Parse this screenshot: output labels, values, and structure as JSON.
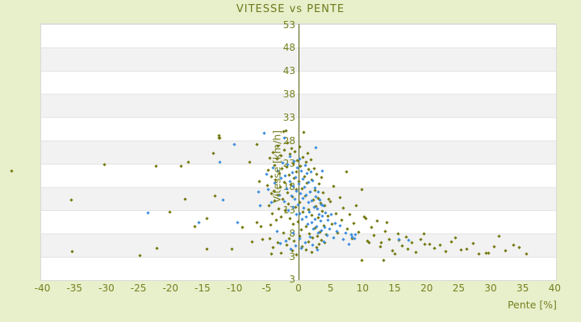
{
  "title": "VITESSE vs PENTE",
  "colors": {
    "background": "#e8efcb",
    "band_gray": "#f2f2f2",
    "band_white": "#ffffff",
    "axis_line": "#4f5a0e",
    "label_olive": "#75801f",
    "series_olive": "#757a12",
    "series_blue": "#3f8fdd"
  },
  "chart_data": {
    "type": "scatter",
    "title": "VITESSE vs PENTE",
    "xlabel": "Pente [%]",
    "ylabel": "Vitesse [km/h]",
    "x_ticks": [
      -40,
      -35,
      -30,
      -25,
      -20,
      -15,
      -10,
      -5,
      0,
      5,
      10,
      15,
      20,
      25,
      30,
      35,
      40
    ],
    "y_ticks": [
      53,
      48,
      43,
      38,
      33,
      28,
      23,
      18,
      13,
      8,
      3
    ],
    "y_axis_end_label": "3",
    "xlim": [
      -40.2,
      40.2
    ],
    "ylim": [
      -2.1,
      53.1
    ],
    "grid": "horizontal-alternating-bands",
    "legend": "none",
    "series": [
      {
        "name": "points-olive",
        "color": "#757a12",
        "points": [
          [
            -44.8,
            21.3
          ],
          [
            -35.4,
            15.1
          ],
          [
            -35.3,
            3.9
          ],
          [
            -30.2,
            22.8
          ],
          [
            -24.7,
            3.1
          ],
          [
            -22.2,
            22.3
          ],
          [
            -22.1,
            4.7
          ],
          [
            -20.1,
            12.5
          ],
          [
            -18.3,
            22.3
          ],
          [
            -17.6,
            15.3
          ],
          [
            -17.1,
            23.3
          ],
          [
            -16.1,
            9.4
          ],
          [
            -14.3,
            11.1
          ],
          [
            -14.2,
            4.5
          ],
          [
            -13.2,
            25.1
          ],
          [
            -13.0,
            16.0
          ],
          [
            -12.4,
            29.0
          ],
          [
            -12.3,
            28.4
          ],
          [
            -12.2,
            28.5
          ],
          [
            -10.3,
            4.5
          ],
          [
            -8.7,
            9.1
          ],
          [
            -7.5,
            23.3
          ],
          [
            -7.2,
            6.1
          ],
          [
            -6.4,
            27.0
          ],
          [
            -6.4,
            10.3
          ],
          [
            -6.1,
            19.0
          ],
          [
            -5.8,
            9.4
          ],
          [
            -5.6,
            6.6
          ],
          [
            -4.1,
            3.4
          ],
          [
            -4.8,
            18.2
          ],
          [
            -4.6,
            21.5
          ],
          [
            -4.5,
            13.8
          ],
          [
            -4.4,
            24.1
          ],
          [
            -4.3,
            9.7
          ],
          [
            -4.2,
            16.4
          ],
          [
            -4.1,
            20.2
          ],
          [
            -4.0,
            12.1
          ],
          [
            -3.9,
            25.3
          ],
          [
            -3.8,
            17.0
          ],
          [
            -3.7,
            22.6
          ],
          [
            -3.6,
            14.9
          ],
          [
            -3.5,
            19.5
          ],
          [
            -3.4,
            10.8
          ],
          [
            -3.3,
            23.9
          ],
          [
            -3.2,
            16.1
          ],
          [
            -3.1,
            26.8
          ],
          [
            -3.0,
            13.2
          ],
          [
            -2.9,
            20.9
          ],
          [
            -2.8,
            17.8
          ],
          [
            -2.7,
            24.6
          ],
          [
            -2.6,
            11.5
          ],
          [
            -2.5,
            21.8
          ],
          [
            -2.4,
            15.3
          ],
          [
            -2.3,
            29.8
          ],
          [
            -2.2,
            18.9
          ],
          [
            -2.1,
            25.9
          ],
          [
            -2.0,
            12.8
          ],
          [
            -1.9,
            30.1
          ],
          [
            -1.8,
            22.2
          ],
          [
            -1.7,
            16.7
          ],
          [
            -1.6,
            27.4
          ],
          [
            -1.5,
            14.2
          ],
          [
            -1.4,
            20.5
          ],
          [
            -1.3,
            24.9
          ],
          [
            -1.2,
            11.1
          ],
          [
            -1.1,
            18.4
          ],
          [
            -1.0,
            26.2
          ],
          [
            -0.9,
            15.7
          ],
          [
            -0.8,
            22.9
          ],
          [
            -0.7,
            9.9
          ],
          [
            -0.6,
            19.8
          ],
          [
            -0.5,
            25.5
          ],
          [
            -0.4,
            13.5
          ],
          [
            -0.3,
            21.2
          ],
          [
            -0.2,
            17.3
          ],
          [
            -0.1,
            23.6
          ],
          [
            0.0,
            10.4
          ],
          [
            0.1,
            19.1
          ],
          [
            0.2,
            26.6
          ],
          [
            0.3,
            14.6
          ],
          [
            0.4,
            22.4
          ],
          [
            0.5,
            8.6
          ],
          [
            0.6,
            17.6
          ],
          [
            0.7,
            24.3
          ],
          [
            0.8,
            12.4
          ],
          [
            0.9,
            29.7
          ],
          [
            1.0,
            20.1
          ],
          [
            1.1,
            15.9
          ],
          [
            1.2,
            23.2
          ],
          [
            1.3,
            9.3
          ],
          [
            1.4,
            18.7
          ],
          [
            1.5,
            25.1
          ],
          [
            1.6,
            13.0
          ],
          [
            1.7,
            21.6
          ],
          [
            1.8,
            7.8
          ],
          [
            1.9,
            16.9
          ],
          [
            2.0,
            23.8
          ],
          [
            2.1,
            11.8
          ],
          [
            2.2,
            19.4
          ],
          [
            2.3,
            6.9
          ],
          [
            2.4,
            15.0
          ],
          [
            2.5,
            21.9
          ],
          [
            2.6,
            9.0
          ],
          [
            2.7,
            17.2
          ],
          [
            2.8,
            13.7
          ],
          [
            2.9,
            20.7
          ],
          [
            3.0,
            7.3
          ],
          [
            3.1,
            15.5
          ],
          [
            3.2,
            11.3
          ],
          [
            3.3,
            18.6
          ],
          [
            3.4,
            8.2
          ],
          [
            3.5,
            14.4
          ],
          [
            3.6,
            19.9
          ],
          [
            3.7,
            6.4
          ],
          [
            3.8,
            12.6
          ],
          [
            3.9,
            16.6
          ],
          [
            4.0,
            9.6
          ],
          [
            4.2,
            13.9
          ],
          [
            4.4,
            7.6
          ],
          [
            4.6,
            11.6
          ],
          [
            4.8,
            15.2
          ],
          [
            -3.9,
            4.8
          ],
          [
            -2.7,
            3.6
          ],
          [
            -1.8,
            5.4
          ],
          [
            -0.9,
            4.1
          ],
          [
            -0.2,
            3.2
          ],
          [
            0.6,
            5.1
          ],
          [
            1.3,
            4.4
          ],
          [
            2.1,
            3.8
          ],
          [
            3.3,
            5.6
          ],
          [
            -1.4,
            6.8
          ],
          [
            0.3,
            7.2
          ],
          [
            1.7,
            6.1
          ],
          [
            2.9,
            4.9
          ],
          [
            -2.3,
            7.9
          ],
          [
            -0.6,
            6.3
          ],
          [
            4.1,
            5.9
          ],
          [
            -4.4,
            6.7
          ],
          [
            -3.1,
            5.9
          ],
          [
            5.1,
            14.8
          ],
          [
            5.3,
            9.9
          ],
          [
            5.6,
            18.1
          ],
          [
            5.9,
            12.2
          ],
          [
            6.2,
            7.9
          ],
          [
            6.5,
            15.6
          ],
          [
            6.8,
            10.7
          ],
          [
            7.1,
            13.4
          ],
          [
            7.5,
            21.1
          ],
          [
            7.7,
            8.8
          ],
          [
            8.1,
            12.0
          ],
          [
            8.4,
            6.7
          ],
          [
            8.7,
            10.1
          ],
          [
            9.1,
            13.8
          ],
          [
            9.5,
            8.1
          ],
          [
            9.9,
            2.1
          ],
          [
            10.0,
            17.4
          ],
          [
            10.3,
            11.4
          ],
          [
            10.6,
            11.1
          ],
          [
            10.9,
            6.2
          ],
          [
            11.1,
            5.8
          ],
          [
            11.5,
            9.2
          ],
          [
            11.9,
            7.4
          ],
          [
            12.4,
            10.6
          ],
          [
            12.9,
            5.1
          ],
          [
            13.0,
            5.8
          ],
          [
            13.3,
            2.1
          ],
          [
            13.6,
            8.4
          ],
          [
            13.9,
            10.3
          ],
          [
            14.3,
            6.6
          ],
          [
            14.8,
            4.2
          ],
          [
            15.1,
            3.5
          ],
          [
            15.6,
            7.8
          ],
          [
            15.7,
            6.4
          ],
          [
            16.3,
            5.2
          ],
          [
            16.9,
            7.1
          ],
          [
            17.2,
            4.5
          ],
          [
            17.8,
            5.9
          ],
          [
            18.4,
            3.8
          ],
          [
            19.1,
            6.6
          ],
          [
            19.7,
            7.8
          ],
          [
            19.8,
            5.5
          ],
          [
            20.5,
            5.5
          ],
          [
            21.3,
            4.6
          ],
          [
            22.2,
            5.3
          ],
          [
            23.1,
            3.9
          ],
          [
            24.0,
            6.1
          ],
          [
            24.6,
            6.9
          ],
          [
            25.4,
            4.4
          ],
          [
            26.4,
            4.5
          ],
          [
            27.3,
            5.7
          ],
          [
            28.2,
            3.5
          ],
          [
            29.3,
            3.7
          ],
          [
            29.8,
            3.7
          ],
          [
            30.6,
            5.0
          ],
          [
            31.4,
            7.2
          ],
          [
            32.4,
            4.1
          ],
          [
            33.7,
            5.3
          ],
          [
            34.5,
            4.8
          ],
          [
            35.7,
            3.4
          ]
        ]
      },
      {
        "name": "points-blue",
        "color": "#3f8fdd",
        "points": [
          [
            -23.5,
            12.3
          ],
          [
            -15.5,
            10.3
          ],
          [
            -11.7,
            15.1
          ],
          [
            -12.2,
            23.3
          ],
          [
            -9.9,
            27.1
          ],
          [
            -9.4,
            10.3
          ],
          [
            -5.3,
            29.5
          ],
          [
            -2.1,
            28.5
          ],
          [
            -5.9,
            13.9
          ],
          [
            -6.2,
            16.8
          ],
          [
            -4.7,
            17.3
          ],
          [
            -4.2,
            14.6
          ],
          [
            -3.9,
            22.0
          ],
          [
            -4.9,
            20.6
          ],
          [
            -3.6,
            18.8
          ],
          [
            -3.2,
            21.4
          ],
          [
            -2.9,
            16.2
          ],
          [
            -2.6,
            19.7
          ],
          [
            -2.4,
            23.1
          ],
          [
            -2.2,
            14.7
          ],
          [
            -2.0,
            20.3
          ],
          [
            -1.8,
            17.5
          ],
          [
            -1.6,
            22.7
          ],
          [
            -1.5,
            12.9
          ],
          [
            -1.3,
            19.0
          ],
          [
            -1.2,
            24.4
          ],
          [
            -1.0,
            16.0
          ],
          [
            -0.9,
            21.0
          ],
          [
            -0.8,
            13.6
          ],
          [
            -0.7,
            18.1
          ],
          [
            -0.6,
            23.4
          ],
          [
            -0.5,
            15.2
          ],
          [
            -0.4,
            20.0
          ],
          [
            -0.3,
            11.9
          ],
          [
            -0.2,
            17.0
          ],
          [
            -0.1,
            22.1
          ],
          [
            0.0,
            14.1
          ],
          [
            0.1,
            18.5
          ],
          [
            0.2,
            24.0
          ],
          [
            0.3,
            12.2
          ],
          [
            0.4,
            16.5
          ],
          [
            0.5,
            21.3
          ],
          [
            0.6,
            10.9
          ],
          [
            0.7,
            15.4
          ],
          [
            0.8,
            19.6
          ],
          [
            0.9,
            13.3
          ],
          [
            1.0,
            17.9
          ],
          [
            1.1,
            22.5
          ],
          [
            1.2,
            11.4
          ],
          [
            1.3,
            16.2
          ],
          [
            1.4,
            20.8
          ],
          [
            1.5,
            9.8
          ],
          [
            1.6,
            14.5
          ],
          [
            1.7,
            18.9
          ],
          [
            1.8,
            12.5
          ],
          [
            1.9,
            16.8
          ],
          [
            2.0,
            21.1
          ],
          [
            2.1,
            10.2
          ],
          [
            2.2,
            14.9
          ],
          [
            2.3,
            19.2
          ],
          [
            2.4,
            8.9
          ],
          [
            2.5,
            13.5
          ],
          [
            2.6,
            17.7
          ],
          [
            2.7,
            11.0
          ],
          [
            2.8,
            15.8
          ],
          [
            2.9,
            9.4
          ],
          [
            3.0,
            13.1
          ],
          [
            3.1,
            16.9
          ],
          [
            3.2,
            7.9
          ],
          [
            3.3,
            12.0
          ],
          [
            3.4,
            15.1
          ],
          [
            3.5,
            10.5
          ],
          [
            3.6,
            14.0
          ],
          [
            3.7,
            8.5
          ],
          [
            3.8,
            11.7
          ],
          [
            3.9,
            13.8
          ],
          [
            4.1,
            9.1
          ],
          [
            4.3,
            12.3
          ],
          [
            4.5,
            7.4
          ],
          [
            4.7,
            10.8
          ],
          [
            4.9,
            8.9
          ],
          [
            5.2,
            11.9
          ],
          [
            5.5,
            7.0
          ],
          [
            5.8,
            10.0
          ],
          [
            6.1,
            8.3
          ],
          [
            6.6,
            9.6
          ],
          [
            7.0,
            6.5
          ],
          [
            7.4,
            8.0
          ],
          [
            7.9,
            5.6
          ],
          [
            8.3,
            7.7
          ],
          [
            8.5,
            7.1
          ],
          [
            8.8,
            6.8
          ],
          [
            9.0,
            7.6
          ],
          [
            15.7,
            6.6
          ],
          [
            17.3,
            6.4
          ],
          [
            2.8,
            26.3
          ],
          [
            3.8,
            21.4
          ],
          [
            0.5,
            4.6
          ],
          [
            1.1,
            5.8
          ],
          [
            -0.4,
            5.2
          ],
          [
            -1.1,
            4.5
          ],
          [
            2.3,
            5.3
          ],
          [
            -1.9,
            6.2
          ],
          [
            3.0,
            4.3
          ],
          [
            -2.8,
            5.7
          ],
          [
            1.9,
            7.1
          ],
          [
            -0.8,
            8.0
          ],
          [
            0.2,
            6.7
          ],
          [
            -3.3,
            8.4
          ],
          [
            4.0,
            6.0
          ]
        ]
      }
    ]
  }
}
